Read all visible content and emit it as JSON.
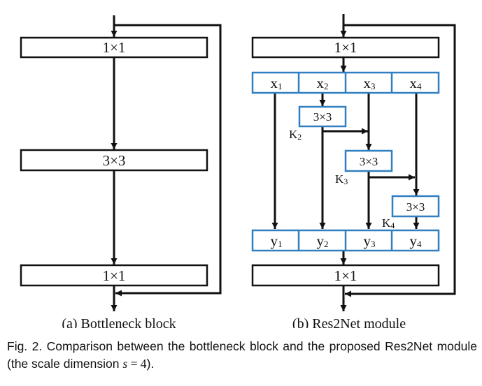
{
  "bottleneck": {
    "conv_top": "1×1",
    "conv_mid": "3×3",
    "conv_bottom": "1×1",
    "subcaption": "(a) Bottleneck block"
  },
  "res2net": {
    "conv_top": "1×1",
    "conv_bottom": "1×1",
    "splits": [
      {
        "main": "x",
        "sub": "1"
      },
      {
        "main": "x",
        "sub": "2"
      },
      {
        "main": "x",
        "sub": "3"
      },
      {
        "main": "x",
        "sub": "4"
      }
    ],
    "inner_convs": [
      "3×3",
      "3×3",
      "3×3"
    ],
    "k_labels": [
      {
        "main": "K",
        "sub": "2"
      },
      {
        "main": "K",
        "sub": "3"
      },
      {
        "main": "K",
        "sub": "4"
      }
    ],
    "outputs": [
      {
        "main": "y",
        "sub": "1"
      },
      {
        "main": "y",
        "sub": "2"
      },
      {
        "main": "y",
        "sub": "3"
      },
      {
        "main": "y",
        "sub": "4"
      }
    ],
    "subcaption": "(b) Res2Net module"
  },
  "caption": {
    "prefix": "Fig. 2.  Comparison between the bottleneck block and the proposed Res2Net module (the scale dimension ",
    "var": "s",
    "eq": " = 4",
    "suffix": ")."
  },
  "colors": {
    "accent_blue": "#2f7fc1",
    "line": "#111111"
  }
}
